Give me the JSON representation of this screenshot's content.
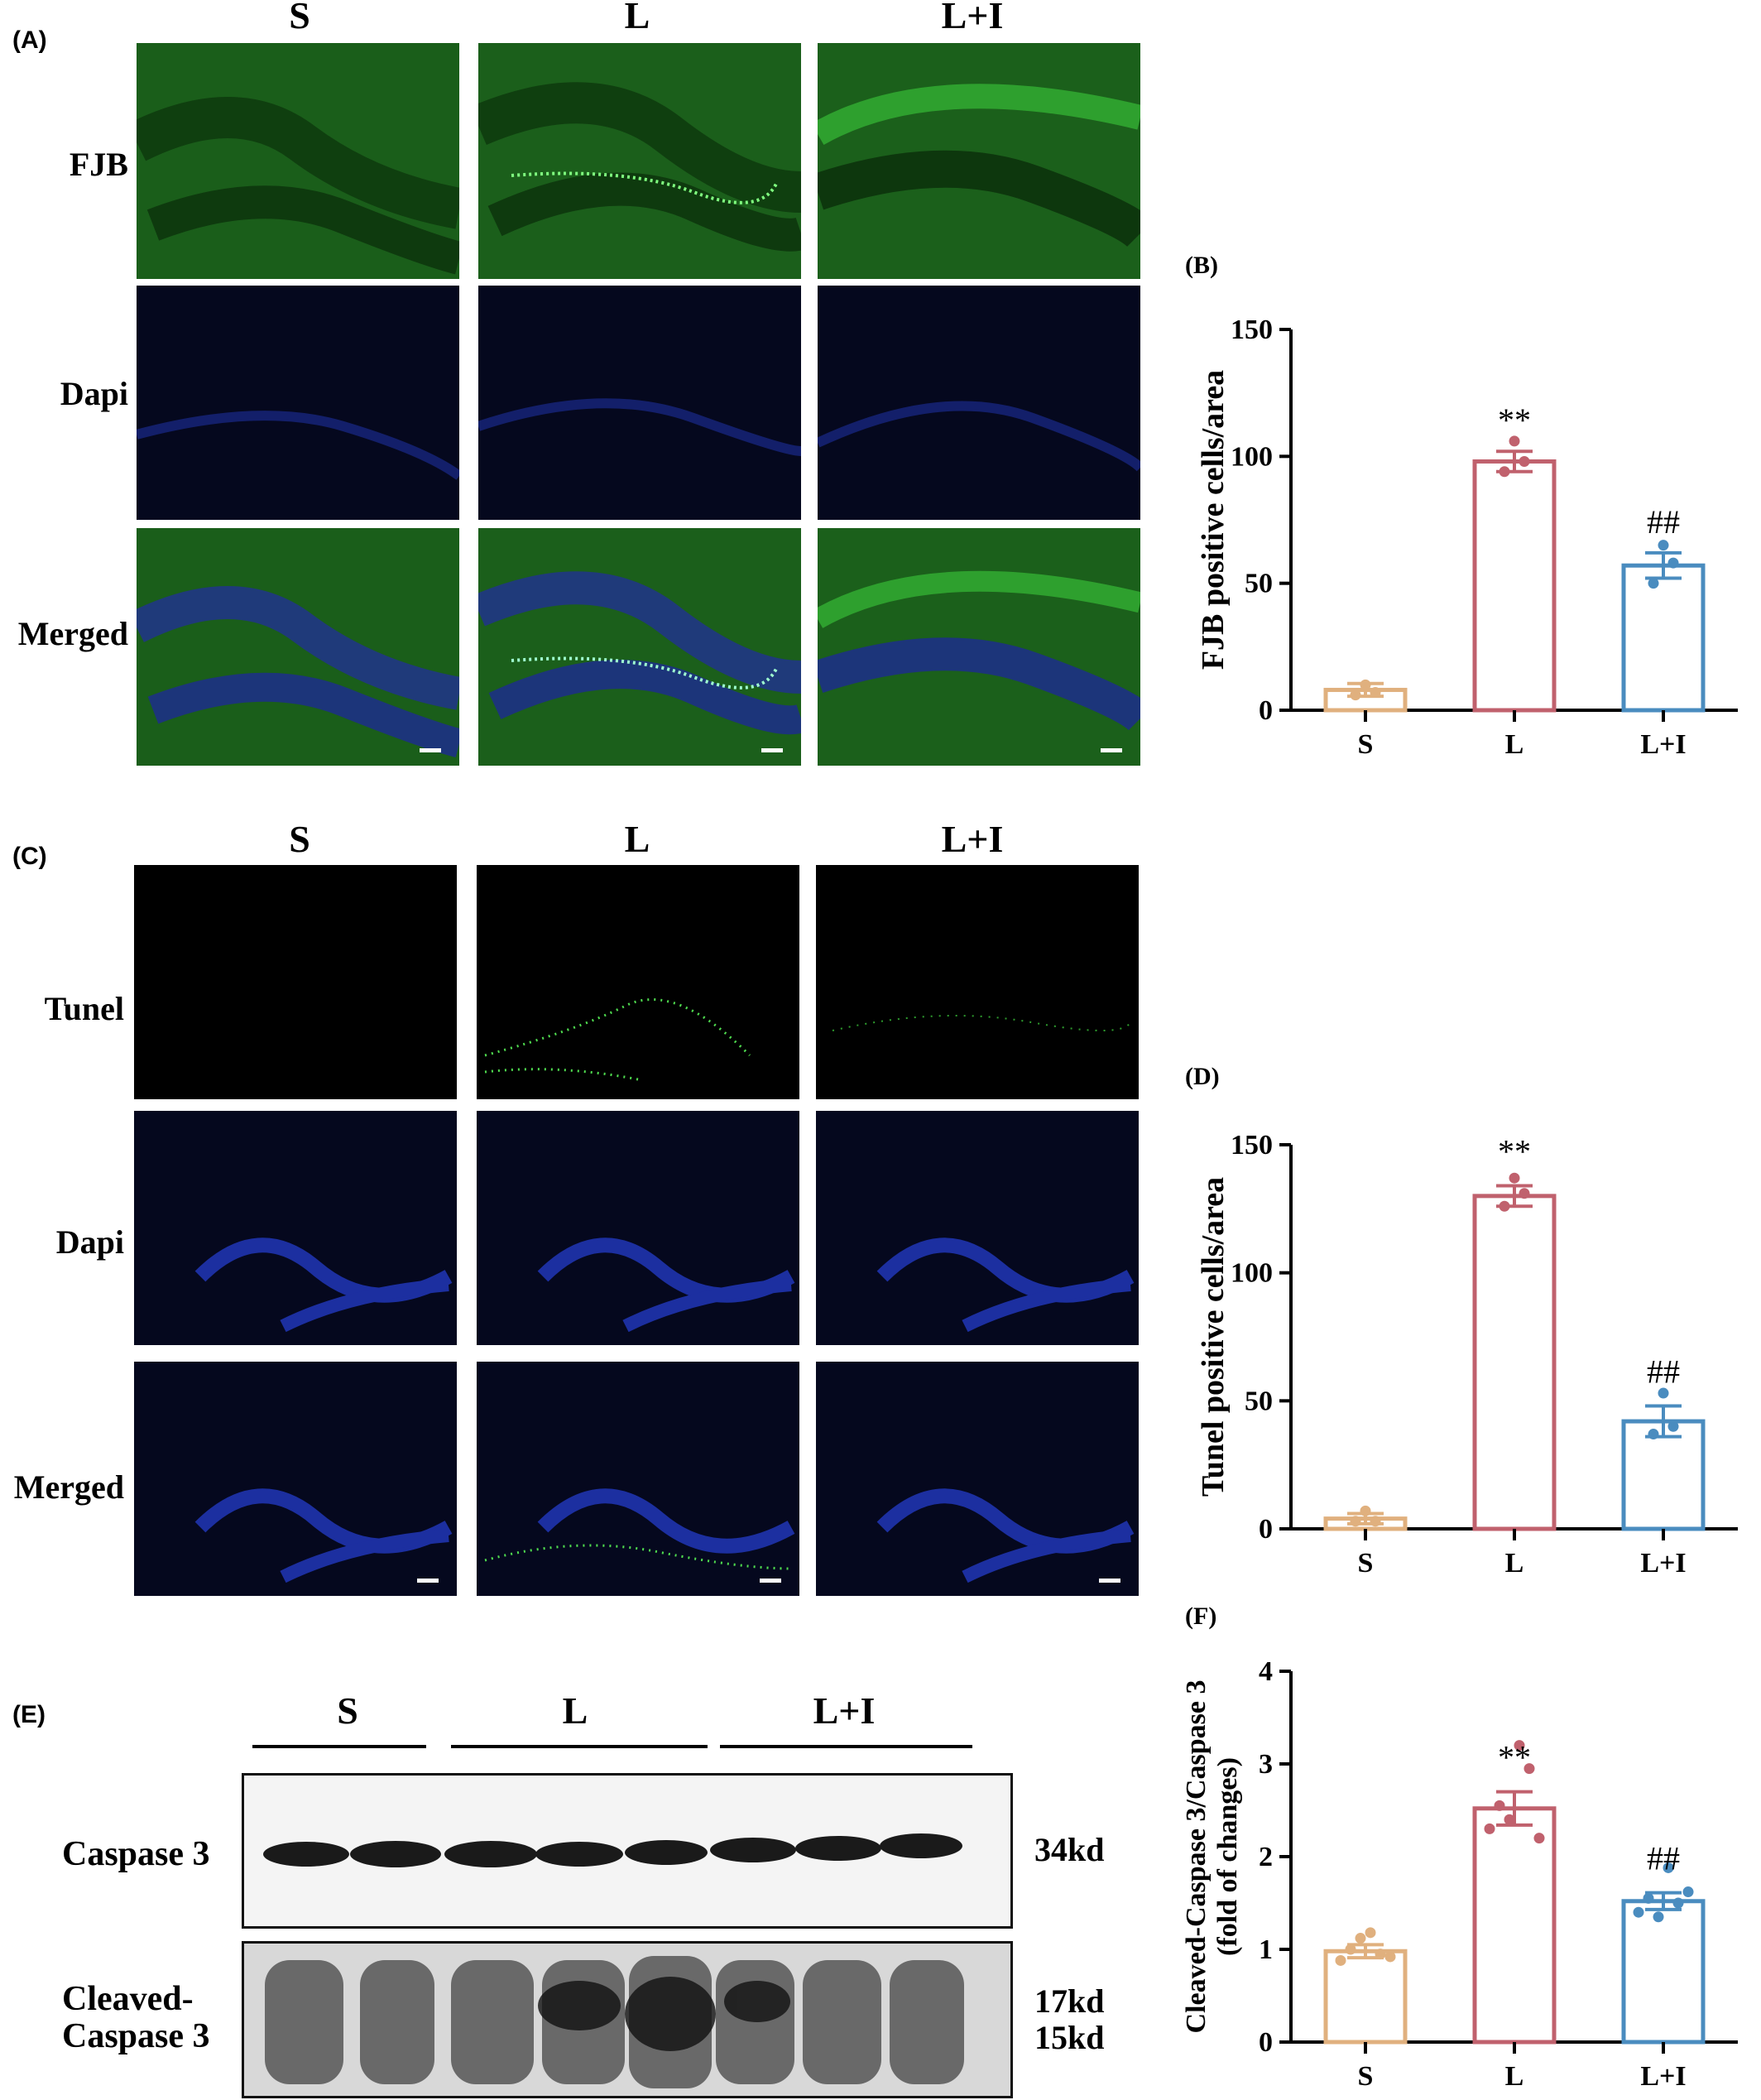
{
  "figure": {
    "panels": {
      "A": {
        "label": "(A)",
        "columns": [
          "S",
          "L",
          "L+I"
        ],
        "rows": [
          "FJB",
          "Dapi",
          "Merged"
        ]
      },
      "C": {
        "label": "(C)",
        "columns": [
          "S",
          "L",
          "L+I"
        ],
        "rows": [
          "Tunel",
          "Dapi",
          "Merged"
        ]
      },
      "E": {
        "label": "(E)",
        "groups": [
          "S",
          "L",
          "L+I"
        ],
        "rows": [
          "Caspase 3",
          "Cleaved-\nCaspase 3"
        ],
        "row1": "Caspase 3",
        "row2a": "Cleaved-",
        "row2b": "Caspase 3",
        "kd1": "34kd",
        "kd2": "17kd",
        "kd3": "15kd"
      }
    }
  },
  "colors": {
    "S": "#E0B07E",
    "L": "#C0616D",
    "LI": "#4A8CBF",
    "fjb_green": "#1f7a1f",
    "dapi_blue": "#1a2a8a"
  },
  "chart_data": [
    {
      "panel": "(B)",
      "type": "bar",
      "categories": [
        "S",
        "L",
        "L+I"
      ],
      "values": [
        8,
        98,
        57
      ],
      "sem": [
        2.5,
        4,
        5
      ],
      "points": [
        [
          6,
          10,
          7
        ],
        [
          94,
          106,
          98
        ],
        [
          50,
          65,
          58
        ]
      ],
      "significance": [
        "",
        "**",
        "##"
      ],
      "ylabel": "FJB positive cells/area",
      "ylim": [
        0,
        150
      ],
      "yticks": [
        0,
        50,
        100,
        150
      ]
    },
    {
      "panel": "(D)",
      "type": "bar",
      "categories": [
        "S",
        "L",
        "L+I"
      ],
      "values": [
        4,
        130,
        42
      ],
      "sem": [
        2,
        4,
        6
      ],
      "points": [
        [
          3,
          7,
          3
        ],
        [
          126,
          137,
          131
        ],
        [
          37,
          53,
          40
        ]
      ],
      "significance": [
        "",
        "**",
        "##"
      ],
      "ylabel": "Tunel positive cells/area",
      "ylim": [
        0,
        150
      ],
      "yticks": [
        0,
        50,
        100,
        150
      ]
    },
    {
      "panel": "(F)",
      "type": "bar",
      "categories": [
        "S",
        "L",
        "L+I"
      ],
      "values": [
        0.98,
        2.52,
        1.52
      ],
      "sem": [
        0.07,
        0.18,
        0.09
      ],
      "points": [
        [
          0.88,
          1.0,
          1.12,
          1.18,
          0.95,
          0.92
        ],
        [
          2.3,
          2.55,
          2.4,
          3.2,
          2.95,
          2.2
        ],
        [
          1.4,
          1.55,
          1.35,
          1.88,
          1.5,
          1.62
        ]
      ],
      "significance": [
        "",
        "**",
        "##"
      ],
      "ylabel": "Cleaved-Caspase 3/Caspase 3",
      "ylabel2": "(fold of changes)",
      "ylim": [
        0,
        4
      ],
      "yticks": [
        0,
        1,
        2,
        3,
        4
      ]
    }
  ]
}
